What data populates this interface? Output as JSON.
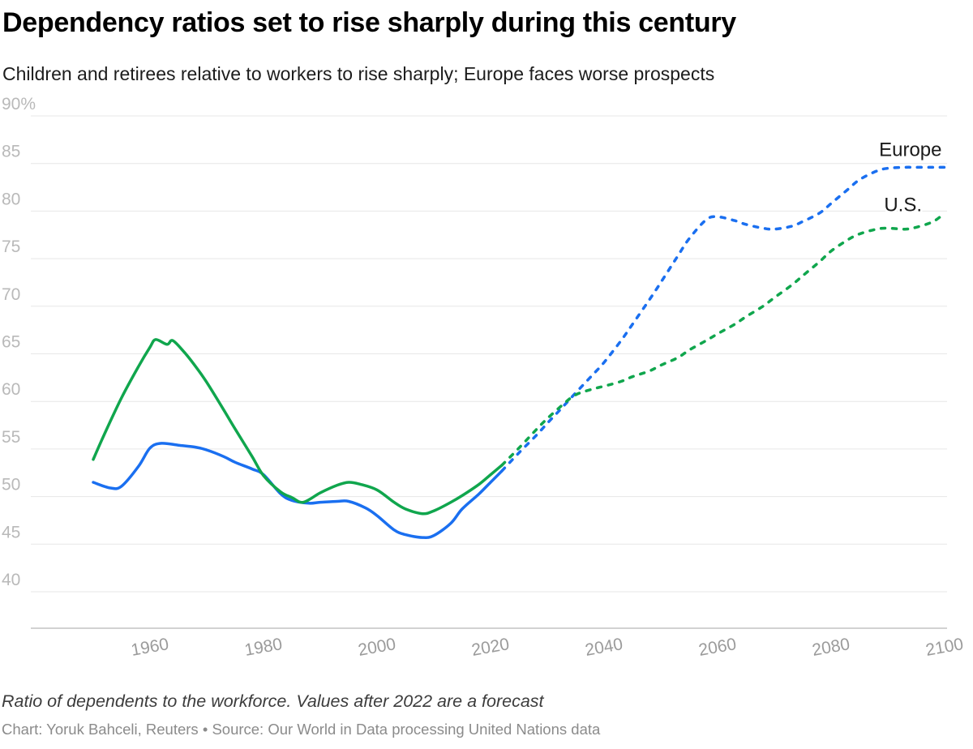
{
  "chart_data": {
    "type": "line",
    "title": "Dependency ratios set to rise sharply during this century",
    "subtitle": "Children and retirees relative to workers to rise sharply; Europe faces worse prospects",
    "note": "Ratio of dependents to the workforce. Values after 2022 are a forecast",
    "credit": "Chart: Yoruk Bahceli, Reuters • Source: Our World in Data processing United Nations data",
    "xlabel": "",
    "ylabel": "",
    "xlim": [
      1950,
      2100
    ],
    "ylim": [
      40,
      90
    ],
    "grid": "horizontal",
    "legend_position": "inline-labels",
    "forecast_split_year": 2022,
    "x_ticks": [
      [
        1960,
        "1960"
      ],
      [
        1980,
        "1980"
      ],
      [
        2000,
        "2000"
      ],
      [
        2020,
        "2020"
      ],
      [
        2040,
        "2040"
      ],
      [
        2060,
        "2060"
      ],
      [
        2080,
        "2080"
      ],
      [
        2100,
        "2100"
      ]
    ],
    "y_ticks": [
      [
        40,
        "40"
      ],
      [
        45,
        "45"
      ],
      [
        50,
        "50"
      ],
      [
        55,
        "55"
      ],
      [
        60,
        "60"
      ],
      [
        65,
        "65"
      ],
      [
        70,
        "70"
      ],
      [
        75,
        "75"
      ],
      [
        80,
        "80"
      ],
      [
        85,
        "85"
      ],
      [
        90,
        "90%"
      ]
    ],
    "colors": {
      "grid": "#e7e7e7",
      "axis": "#a6a6a6",
      "ytick": "#b9b9b9",
      "xtick": "#9b9b9b",
      "label": "#1a1a1a",
      "europe": "#1a6ff0",
      "us": "#10a64d"
    },
    "series": [
      {
        "name": "Europe",
        "color": "#1a6ff0",
        "label": {
          "text": "Europe",
          "year": 2099.5,
          "value": 85.8,
          "anchor": "end"
        },
        "historical": [
          [
            1950,
            51.5
          ],
          [
            1953,
            50.9
          ],
          [
            1955,
            51.1
          ],
          [
            1958,
            53.2
          ],
          [
            1960,
            55.1
          ],
          [
            1962,
            55.6
          ],
          [
            1965,
            55.4
          ],
          [
            1968,
            55.2
          ],
          [
            1970,
            54.9
          ],
          [
            1973,
            54.2
          ],
          [
            1975,
            53.6
          ],
          [
            1978,
            52.9
          ],
          [
            1980,
            52.3
          ],
          [
            1983,
            50.3
          ],
          [
            1985,
            49.6
          ],
          [
            1988,
            49.3
          ],
          [
            1990,
            49.4
          ],
          [
            1993,
            49.5
          ],
          [
            1995,
            49.5
          ],
          [
            1998,
            48.8
          ],
          [
            2000,
            48.0
          ],
          [
            2003,
            46.5
          ],
          [
            2005,
            46.0
          ],
          [
            2008,
            45.7
          ],
          [
            2010,
            45.9
          ],
          [
            2013,
            47.2
          ],
          [
            2015,
            48.7
          ],
          [
            2018,
            50.3
          ],
          [
            2020,
            51.5
          ],
          [
            2022,
            52.7
          ]
        ],
        "forecast": [
          [
            2022,
            52.7
          ],
          [
            2025,
            54.6
          ],
          [
            2028,
            56.4
          ],
          [
            2030,
            57.7
          ],
          [
            2033,
            59.6
          ],
          [
            2035,
            60.9
          ],
          [
            2038,
            62.8
          ],
          [
            2040,
            64.1
          ],
          [
            2043,
            66.4
          ],
          [
            2045,
            68.1
          ],
          [
            2048,
            70.7
          ],
          [
            2050,
            72.5
          ],
          [
            2053,
            75.3
          ],
          [
            2055,
            77.1
          ],
          [
            2058,
            79.1
          ],
          [
            2060,
            79.4
          ],
          [
            2063,
            79.0
          ],
          [
            2065,
            78.6
          ],
          [
            2068,
            78.2
          ],
          [
            2070,
            78.1
          ],
          [
            2073,
            78.4
          ],
          [
            2075,
            78.9
          ],
          [
            2078,
            79.8
          ],
          [
            2080,
            80.8
          ],
          [
            2083,
            82.3
          ],
          [
            2085,
            83.3
          ],
          [
            2088,
            84.2
          ],
          [
            2090,
            84.5
          ],
          [
            2093,
            84.6
          ],
          [
            2095,
            84.6
          ],
          [
            2098,
            84.6
          ],
          [
            2100,
            84.6
          ]
        ]
      },
      {
        "name": "U.S.",
        "color": "#10a64d",
        "label": {
          "text": "U.S.",
          "year": 2096,
          "value": 80.0,
          "anchor": "end"
        },
        "historical": [
          [
            1950,
            53.9
          ],
          [
            1952,
            56.6
          ],
          [
            1955,
            60.4
          ],
          [
            1958,
            63.7
          ],
          [
            1960,
            65.7
          ],
          [
            1961,
            66.5
          ],
          [
            1963,
            66.0
          ],
          [
            1964,
            66.4
          ],
          [
            1966,
            65.2
          ],
          [
            1968,
            63.7
          ],
          [
            1970,
            62.0
          ],
          [
            1973,
            59.1
          ],
          [
            1975,
            57.1
          ],
          [
            1978,
            54.2
          ],
          [
            1980,
            52.2
          ],
          [
            1983,
            50.5
          ],
          [
            1985,
            49.9
          ],
          [
            1987,
            49.4
          ],
          [
            1990,
            50.4
          ],
          [
            1993,
            51.2
          ],
          [
            1995,
            51.5
          ],
          [
            1997,
            51.3
          ],
          [
            2000,
            50.7
          ],
          [
            2003,
            49.4
          ],
          [
            2005,
            48.7
          ],
          [
            2008,
            48.2
          ],
          [
            2010,
            48.5
          ],
          [
            2013,
            49.4
          ],
          [
            2015,
            50.1
          ],
          [
            2018,
            51.3
          ],
          [
            2020,
            52.3
          ],
          [
            2022,
            53.3
          ]
        ],
        "forecast": [
          [
            2022,
            53.3
          ],
          [
            2025,
            55.1
          ],
          [
            2028,
            57.0
          ],
          [
            2030,
            58.2
          ],
          [
            2033,
            59.8
          ],
          [
            2035,
            60.7
          ],
          [
            2038,
            61.3
          ],
          [
            2040,
            61.6
          ],
          [
            2043,
            62.1
          ],
          [
            2045,
            62.6
          ],
          [
            2048,
            63.2
          ],
          [
            2050,
            63.8
          ],
          [
            2053,
            64.6
          ],
          [
            2055,
            65.4
          ],
          [
            2058,
            66.4
          ],
          [
            2060,
            67.1
          ],
          [
            2063,
            68.1
          ],
          [
            2065,
            68.9
          ],
          [
            2068,
            70.0
          ],
          [
            2070,
            70.9
          ],
          [
            2073,
            72.2
          ],
          [
            2075,
            73.2
          ],
          [
            2078,
            74.7
          ],
          [
            2080,
            75.8
          ],
          [
            2083,
            77.0
          ],
          [
            2085,
            77.6
          ],
          [
            2088,
            78.1
          ],
          [
            2090,
            78.2
          ],
          [
            2093,
            78.1
          ],
          [
            2095,
            78.3
          ],
          [
            2098,
            78.9
          ],
          [
            2100,
            79.8
          ]
        ]
      }
    ]
  }
}
